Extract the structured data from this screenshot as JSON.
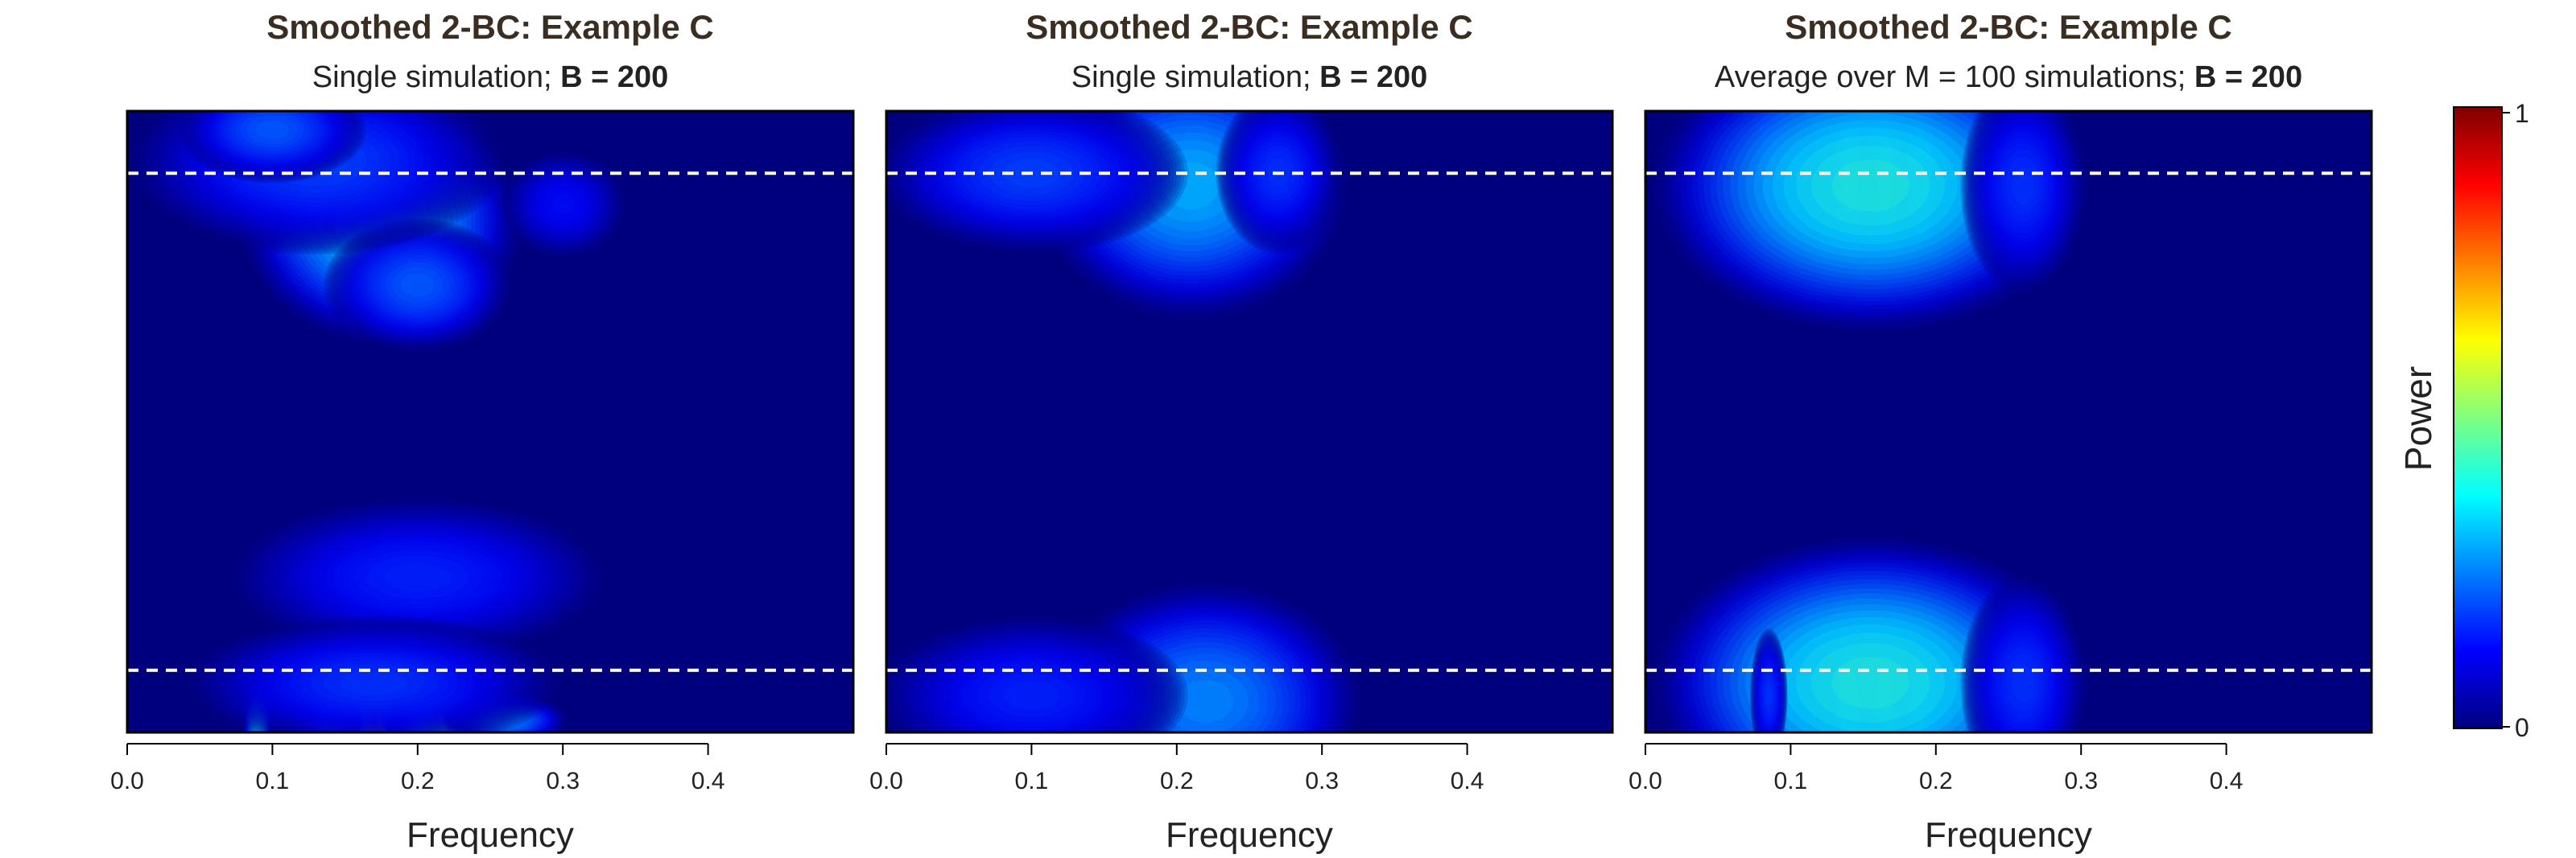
{
  "colorbar": {
    "label": "Power",
    "tick_max": "1",
    "tick_min": "0",
    "colors": [
      "#00007F",
      "#0000FF",
      "#007FFF",
      "#00FFFF",
      "#7FFF7F",
      "#FFFF00",
      "#FF7F00",
      "#FF0000",
      "#7F0000"
    ]
  },
  "reference_line_color": "#ffffff",
  "chart_data": [
    {
      "type": "heatmap",
      "title": "Smoothed 2-BC: Example C",
      "subtitle_prefix": "Single simulation; ",
      "subtitle_bold": "B = 200",
      "xlabel": "Frequency",
      "ylabel": "",
      "xlim": [
        0,
        0.5
      ],
      "ylim": [
        0,
        1
      ],
      "xticks": [
        "0.0",
        "0.1",
        "0.2",
        "0.3",
        "0.4"
      ],
      "reference_lines_y": [
        0.1,
        0.9
      ],
      "intensity_scale": [
        0,
        1
      ],
      "grid": false,
      "blobs": [
        {
          "x": 0.175,
          "y": 0.88,
          "sx": 0.018,
          "sy": 0.03,
          "a": 0.9
        },
        {
          "x": 0.19,
          "y": 0.88,
          "sx": 0.01,
          "sy": 0.02,
          "a": 0.25
        },
        {
          "x": 0.175,
          "y": 0.82,
          "sx": 0.045,
          "sy": 0.09,
          "a": 0.4
        },
        {
          "x": 0.2,
          "y": 0.72,
          "sx": 0.03,
          "sy": 0.05,
          "a": 0.25
        },
        {
          "x": 0.13,
          "y": 0.92,
          "sx": 0.06,
          "sy": 0.07,
          "a": 0.22
        },
        {
          "x": 0.1,
          "y": 0.97,
          "sx": 0.03,
          "sy": 0.04,
          "a": 0.25
        },
        {
          "x": 0.3,
          "y": 0.85,
          "sx": 0.02,
          "sy": 0.04,
          "a": 0.15
        },
        {
          "x": 0.2,
          "y": 0.25,
          "sx": 0.06,
          "sy": 0.06,
          "a": 0.18
        },
        {
          "x": 0.17,
          "y": 0.02,
          "sx": 0.006,
          "sy": 0.04,
          "a": 0.75
        },
        {
          "x": 0.22,
          "y": 0.02,
          "sx": 0.02,
          "sy": 0.03,
          "a": 0.55
        },
        {
          "x": 0.09,
          "y": 0.02,
          "sx": 0.005,
          "sy": 0.03,
          "a": 0.4
        },
        {
          "x": 0.14,
          "y": 0.02,
          "sx": 0.01,
          "sy": 0.02,
          "a": 0.3
        },
        {
          "x": 0.26,
          "y": 0.02,
          "sx": 0.02,
          "sy": 0.02,
          "a": 0.3
        },
        {
          "x": 0.17,
          "y": 0.08,
          "sx": 0.06,
          "sy": 0.05,
          "a": 0.2
        }
      ]
    },
    {
      "type": "heatmap",
      "title": "Smoothed 2-BC: Example C",
      "subtitle_prefix": "Single simulation; ",
      "subtitle_bold": "B = 200",
      "xlabel": "Frequency",
      "ylabel": "",
      "xlim": [
        0,
        0.5
      ],
      "ylim": [
        0,
        1
      ],
      "xticks": [
        "0.0",
        "0.1",
        "0.2",
        "0.3",
        "0.4"
      ],
      "reference_lines_y": [
        0.1,
        0.9
      ],
      "intensity_scale": [
        0,
        1
      ],
      "grid": false,
      "blobs": [
        {
          "x": 0.17,
          "y": 0.9,
          "sx": 0.006,
          "sy": 0.05,
          "a": 0.75
        },
        {
          "x": 0.19,
          "y": 0.9,
          "sx": 0.006,
          "sy": 0.05,
          "a": 0.6
        },
        {
          "x": 0.215,
          "y": 0.9,
          "sx": 0.008,
          "sy": 0.05,
          "a": 0.55
        },
        {
          "x": 0.24,
          "y": 0.9,
          "sx": 0.008,
          "sy": 0.05,
          "a": 0.5
        },
        {
          "x": 0.21,
          "y": 0.88,
          "sx": 0.05,
          "sy": 0.1,
          "a": 0.35
        },
        {
          "x": 0.1,
          "y": 0.9,
          "sx": 0.05,
          "sy": 0.06,
          "a": 0.22
        },
        {
          "x": 0.27,
          "y": 0.9,
          "sx": 0.02,
          "sy": 0.06,
          "a": 0.2
        },
        {
          "x": 0.17,
          "y": 0.04,
          "sx": 0.006,
          "sy": 0.04,
          "a": 0.5
        },
        {
          "x": 0.2,
          "y": 0.04,
          "sx": 0.008,
          "sy": 0.04,
          "a": 0.4
        },
        {
          "x": 0.22,
          "y": 0.05,
          "sx": 0.05,
          "sy": 0.09,
          "a": 0.3
        },
        {
          "x": 0.1,
          "y": 0.06,
          "sx": 0.05,
          "sy": 0.06,
          "a": 0.18
        }
      ]
    },
    {
      "type": "heatmap",
      "title": "Smoothed 2-BC: Example C",
      "subtitle_prefix": "Average over M = 100 simulations; ",
      "subtitle_bold": "B = 200",
      "xlabel": "Frequency",
      "ylabel": "",
      "xlim": [
        0,
        0.5
      ],
      "ylim": [
        0,
        1
      ],
      "xticks": [
        "0.0",
        "0.1",
        "0.2",
        "0.3",
        "0.4"
      ],
      "reference_lines_y": [
        0.1,
        0.9
      ],
      "intensity_scale": [
        0,
        1
      ],
      "grid": false,
      "blobs": [
        {
          "x": 0.085,
          "y": 0.9,
          "sx": 0.006,
          "sy": 0.06,
          "a": 0.25
        },
        {
          "x": 0.14,
          "y": 0.9,
          "sx": 0.006,
          "sy": 0.06,
          "a": 0.55
        },
        {
          "x": 0.165,
          "y": 0.9,
          "sx": 0.006,
          "sy": 0.06,
          "a": 0.5
        },
        {
          "x": 0.19,
          "y": 0.9,
          "sx": 0.006,
          "sy": 0.06,
          "a": 0.55
        },
        {
          "x": 0.155,
          "y": 0.88,
          "sx": 0.07,
          "sy": 0.11,
          "a": 0.45
        },
        {
          "x": 0.26,
          "y": 0.88,
          "sx": 0.02,
          "sy": 0.08,
          "a": 0.2
        },
        {
          "x": 0.14,
          "y": 0.05,
          "sx": 0.006,
          "sy": 0.05,
          "a": 0.55
        },
        {
          "x": 0.165,
          "y": 0.05,
          "sx": 0.006,
          "sy": 0.05,
          "a": 0.5
        },
        {
          "x": 0.19,
          "y": 0.05,
          "sx": 0.006,
          "sy": 0.05,
          "a": 0.55
        },
        {
          "x": 0.155,
          "y": 0.08,
          "sx": 0.07,
          "sy": 0.11,
          "a": 0.45
        },
        {
          "x": 0.26,
          "y": 0.08,
          "sx": 0.02,
          "sy": 0.08,
          "a": 0.2
        },
        {
          "x": 0.085,
          "y": 0.06,
          "sx": 0.006,
          "sy": 0.05,
          "a": 0.2
        }
      ]
    }
  ]
}
